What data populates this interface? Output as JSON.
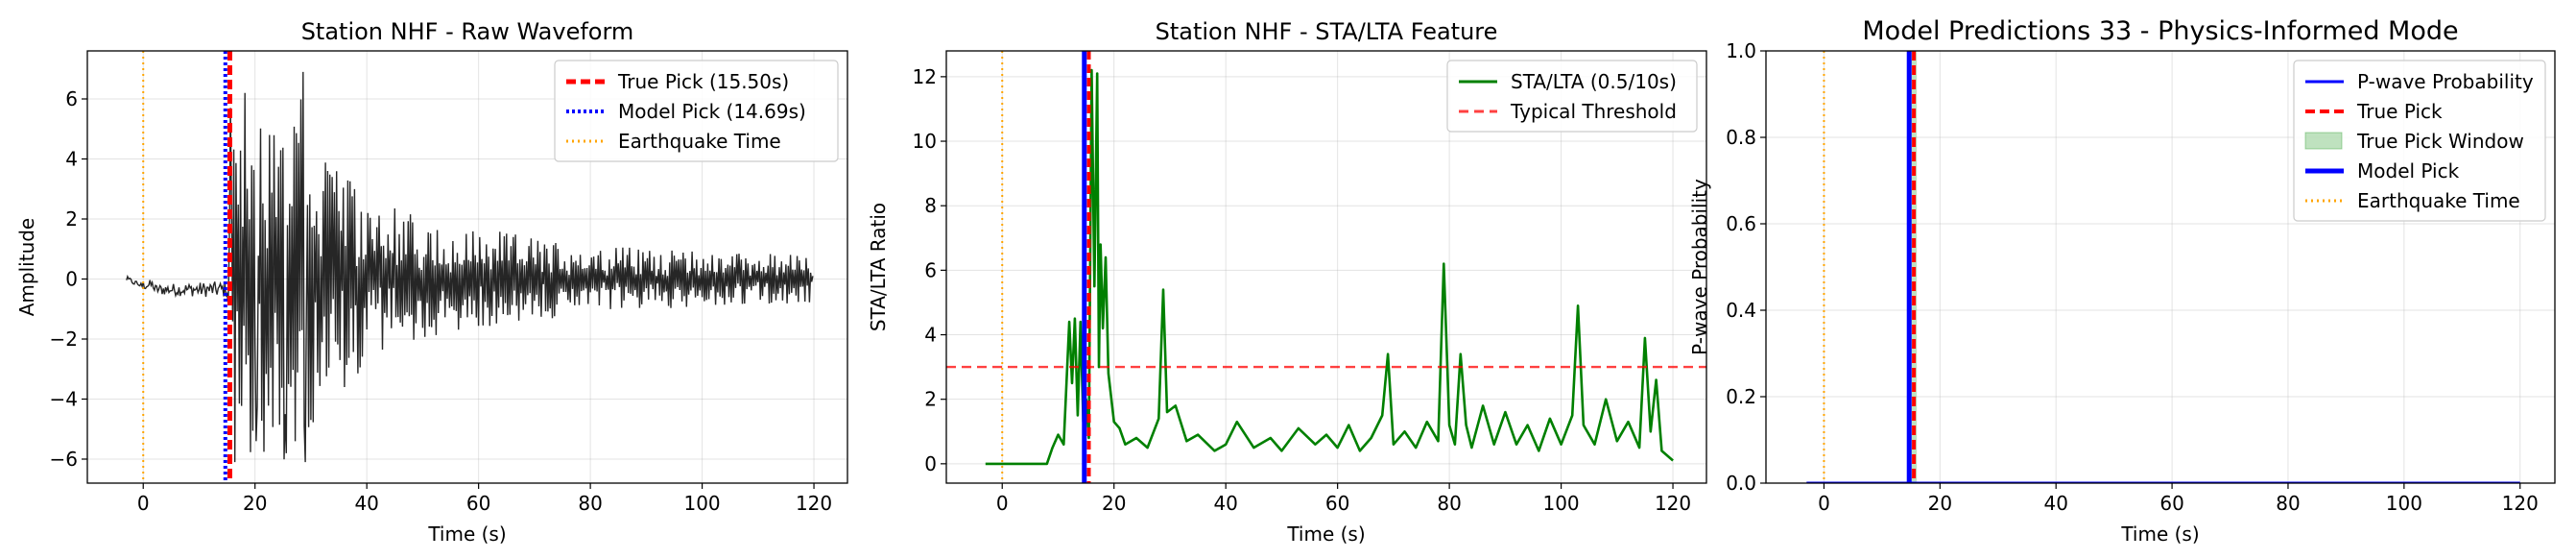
{
  "chart_data": [
    {
      "type": "line",
      "title": "Station NHF - Raw Waveform",
      "xlabel": "Time (s)",
      "ylabel": "Amplitude",
      "xlim": [
        -10,
        126
      ],
      "ylim": [
        -6.8,
        7.6
      ],
      "xticks": [
        0,
        20,
        40,
        60,
        80,
        100,
        120
      ],
      "yticks": [
        -6,
        -4,
        -2,
        0,
        2,
        4,
        6
      ],
      "grid": true,
      "legend_position": "top-right",
      "series": [
        {
          "name": "",
          "kind": "waveform",
          "color": "#000000",
          "x_start": -3,
          "x_end": 120,
          "envelope": [
            {
              "x": -3,
              "amp": 0.2
            },
            {
              "x": 15,
              "amp": 0.4
            },
            {
              "x": 16,
              "amp": 5.5
            },
            {
              "x": 20,
              "amp": 6.0
            },
            {
              "x": 28,
              "amp": 6.5
            },
            {
              "x": 35,
              "amp": 3.5
            },
            {
              "x": 50,
              "amp": 2.0
            },
            {
              "x": 70,
              "amp": 1.4
            },
            {
              "x": 90,
              "amp": 1.0
            },
            {
              "x": 120,
              "amp": 0.8
            }
          ],
          "peaks": [
            {
              "x": 15.6,
              "y": 5.7
            },
            {
              "x": 16.4,
              "y": -6.1
            },
            {
              "x": 18.2,
              "y": 6.2
            },
            {
              "x": 20.1,
              "y": -5.4
            },
            {
              "x": 22.5,
              "y": 4.8
            },
            {
              "x": 25.3,
              "y": -4.5
            },
            {
              "x": 28.6,
              "y": 6.9
            },
            {
              "x": 28.9,
              "y": -6.1
            },
            {
              "x": 33.0,
              "y": 3.6
            },
            {
              "x": 36.0,
              "y": -3.6
            }
          ]
        },
        {
          "name": "True Pick (15.50s)",
          "kind": "vline",
          "x": 15.5,
          "color": "#ff0000",
          "dash": "10,5",
          "width": 5
        },
        {
          "name": "Model Pick (14.69s)",
          "kind": "vline",
          "x": 14.69,
          "color": "#0000ff",
          "dash": "3,3",
          "width": 4
        },
        {
          "name": "Earthquake Time",
          "kind": "vline",
          "x": 0,
          "color": "#ffa500",
          "dash": "2,4",
          "width": 2
        }
      ]
    },
    {
      "type": "line",
      "title": "Station NHF - STA/LTA Feature",
      "xlabel": "Time (s)",
      "ylabel": "STA/LTA Ratio",
      "xlim": [
        -10,
        126
      ],
      "ylim": [
        -0.6,
        12.8
      ],
      "xticks": [
        0,
        20,
        40,
        60,
        80,
        100,
        120
      ],
      "yticks": [
        0,
        2,
        4,
        6,
        8,
        10,
        12
      ],
      "grid": true,
      "legend_position": "top-right",
      "series": [
        {
          "name": "STA/LTA (0.5/10s)",
          "kind": "line",
          "color": "#008000",
          "width": 2.6,
          "x": [
            -3,
            8,
            9,
            10,
            11,
            12,
            12.5,
            13,
            13.5,
            14,
            14.5,
            15,
            15.5,
            16,
            16.5,
            17,
            17.3,
            17.6,
            18,
            18.5,
            19,
            20,
            21,
            22,
            24,
            26,
            28,
            28.8,
            29.5,
            31,
            33,
            35,
            38,
            40,
            42,
            45,
            48,
            50,
            53,
            56,
            58,
            60,
            62,
            64,
            66,
            68,
            69,
            70,
            72,
            74,
            76,
            78,
            79,
            80,
            81,
            82,
            83,
            84,
            86,
            88,
            90,
            92,
            94,
            96,
            98,
            100,
            102,
            103,
            104,
            106,
            108,
            110,
            112,
            114,
            115,
            116,
            117,
            118,
            120
          ],
          "y": [
            0,
            0,
            0.5,
            0.9,
            0.6,
            4.4,
            2.5,
            4.5,
            1.5,
            4.4,
            1.3,
            2.0,
            0.8,
            12.2,
            5.5,
            12.1,
            3.0,
            6.8,
            4.2,
            6.4,
            2.8,
            1.3,
            1.1,
            0.6,
            0.8,
            0.5,
            1.4,
            5.4,
            1.6,
            1.8,
            0.7,
            0.9,
            0.4,
            0.6,
            1.3,
            0.5,
            0.8,
            0.4,
            1.1,
            0.6,
            0.9,
            0.5,
            1.2,
            0.4,
            0.8,
            1.5,
            3.4,
            0.6,
            1.0,
            0.5,
            1.3,
            0.7,
            6.2,
            1.2,
            0.6,
            3.4,
            1.2,
            0.5,
            1.8,
            0.6,
            1.6,
            0.6,
            1.2,
            0.4,
            1.4,
            0.6,
            1.5,
            4.9,
            1.2,
            0.6,
            2.0,
            0.7,
            1.3,
            0.5,
            3.9,
            1.0,
            2.6,
            0.4,
            0.1
          ]
        },
        {
          "name": "Typical Threshold",
          "kind": "hline",
          "y": 3,
          "color": "#ff0000",
          "dash": "10,6",
          "width": 2.4,
          "opacity": 0.75
        },
        {
          "name": "",
          "kind": "vline",
          "x": 14.69,
          "color": "#0000ff",
          "dash": "",
          "width": 5
        },
        {
          "name": "",
          "kind": "vline",
          "x": 15.5,
          "color": "#ff0000",
          "dash": "9,5",
          "width": 4
        },
        {
          "name": "",
          "kind": "vline",
          "x": 0,
          "color": "#ffa500",
          "dash": "2,4",
          "width": 2
        }
      ]
    },
    {
      "type": "line",
      "title": "Model Predictions 33 - Physics-Informed Mode",
      "xlabel": "Time (s)",
      "ylabel": "P-wave Probability",
      "xlim": [
        -10,
        126
      ],
      "ylim": [
        0,
        1
      ],
      "xticks": [
        0,
        20,
        40,
        60,
        80,
        100,
        120
      ],
      "yticks": [
        0.0,
        0.2,
        0.4,
        0.6,
        0.8,
        1.0
      ],
      "ytick_labels": [
        "0.0",
        "0.2",
        "0.4",
        "0.6",
        "0.8",
        "1.0"
      ],
      "grid": true,
      "legend_position": "top-right",
      "series": [
        {
          "name": "P-wave Probability",
          "kind": "line",
          "color": "#0000ff",
          "width": 3,
          "x": [
            -3,
            120
          ],
          "y": [
            0,
            0
          ]
        },
        {
          "name": "True Pick",
          "kind": "vline",
          "x": 15.5,
          "color": "#ff0000",
          "dash": "10,5",
          "width": 4
        },
        {
          "name": "True Pick Window",
          "kind": "span",
          "x0": 15.0,
          "x1": 16.0,
          "color": "#2ca02c",
          "opacity": 0.3
        },
        {
          "name": "Model Pick",
          "kind": "vline",
          "x": 14.69,
          "color": "#0000ff",
          "dash": "",
          "width": 5
        },
        {
          "name": "Earthquake Time",
          "kind": "vline",
          "x": 0,
          "color": "#ffa500",
          "dash": "2,4",
          "width": 2
        }
      ]
    }
  ]
}
